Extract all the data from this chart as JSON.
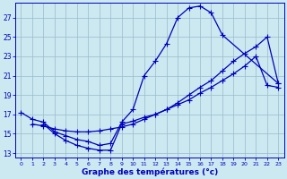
{
  "xlabel": "Graphe des températures (°c)",
  "bg_color": "#cce8f0",
  "line_color": "#0000bb",
  "grid_color": "#99bbcc",
  "xlim": [
    -0.5,
    23.5
  ],
  "ylim": [
    12.5,
    28.5
  ],
  "yticks": [
    13,
    15,
    17,
    19,
    21,
    23,
    25,
    27
  ],
  "xticks": [
    0,
    1,
    2,
    3,
    4,
    5,
    6,
    7,
    8,
    9,
    10,
    11,
    12,
    13,
    14,
    15,
    16,
    17,
    18,
    19,
    20,
    21,
    22,
    23
  ],
  "line1_x": [
    0,
    1,
    2,
    3,
    4,
    5,
    6,
    7,
    8,
    9,
    10,
    11,
    12,
    13,
    14,
    15,
    16,
    17,
    18,
    23
  ],
  "line1_y": [
    17.2,
    16.5,
    16.2,
    15.2,
    14.8,
    14.4,
    14.2,
    13.8,
    14.0,
    16.2,
    17.5,
    21.0,
    22.5,
    24.3,
    27.0,
    28.0,
    28.2,
    27.5,
    25.2,
    20.2
  ],
  "line2_x": [
    1,
    2,
    3,
    4,
    5,
    6,
    7,
    8,
    9,
    10,
    11,
    12,
    13,
    14,
    15,
    16,
    17,
    18,
    19,
    20,
    21,
    22,
    23
  ],
  "line2_y": [
    16.0,
    15.8,
    15.5,
    15.3,
    15.2,
    15.2,
    15.3,
    15.5,
    15.7,
    16.0,
    16.5,
    17.0,
    17.5,
    18.2,
    19.0,
    19.8,
    20.5,
    21.5,
    22.5,
    23.3,
    24.0,
    25.0,
    20.2
  ],
  "line3_x": [
    2,
    3,
    4,
    5,
    6,
    7,
    8,
    9,
    10,
    11,
    12,
    13,
    14,
    15,
    16,
    17,
    18,
    19,
    20,
    21,
    22,
    23
  ],
  "line3_y": [
    16.0,
    15.0,
    14.3,
    13.8,
    13.5,
    13.3,
    13.3,
    16.0,
    16.3,
    16.7,
    17.0,
    17.5,
    18.0,
    18.5,
    19.2,
    19.8,
    20.5,
    21.2,
    22.0,
    23.0,
    20.0,
    19.8
  ],
  "marker": "+",
  "marker_size": 4.0,
  "linewidth": 0.9
}
